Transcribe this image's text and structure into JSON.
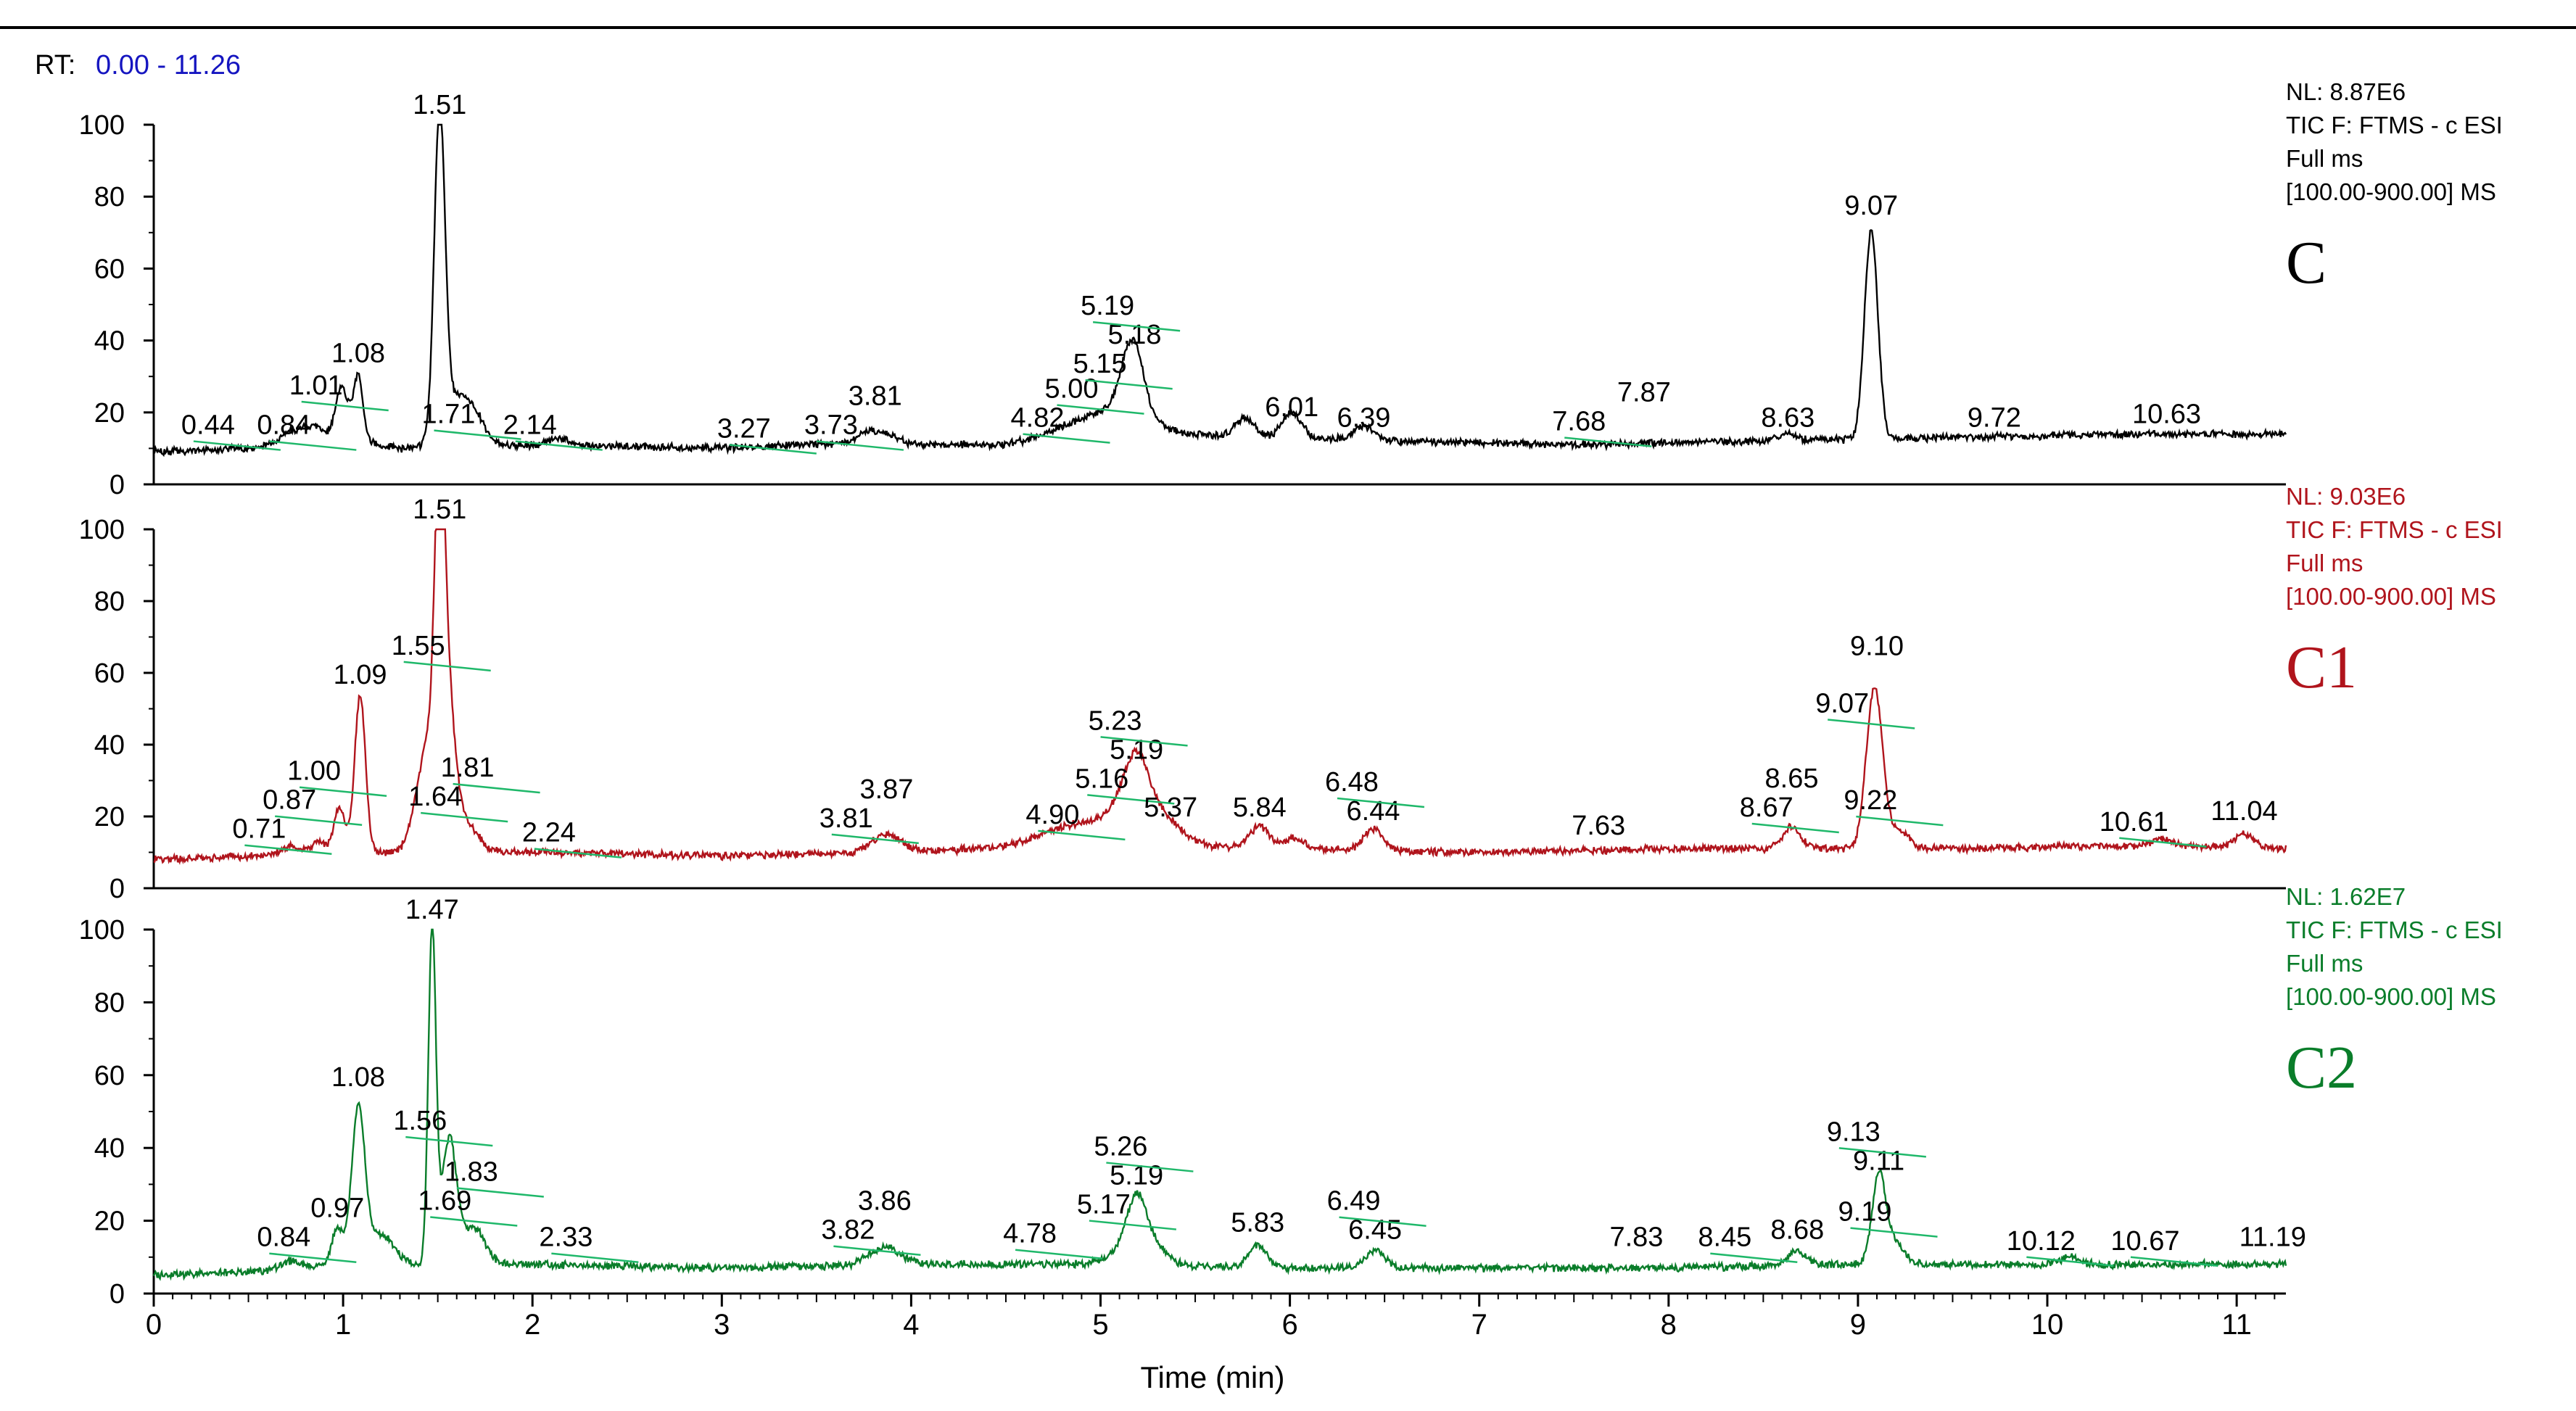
{
  "rt_label": "RT:",
  "rt_range": "0.00 - 11.26",
  "x_axis": {
    "label": "Time (min)",
    "min": 0,
    "max": 11.26,
    "ticks": [
      "0",
      "1",
      "2",
      "3",
      "4",
      "5",
      "6",
      "7",
      "8",
      "9",
      "10",
      "11"
    ]
  },
  "y_axis": {
    "min": 0,
    "max": 100,
    "ticks": [
      "0",
      "20",
      "40",
      "60",
      "80",
      "100"
    ]
  },
  "colors": {
    "C": "#000000",
    "C1": "#b0141c",
    "C2": "#0a7d2a",
    "annotation_leader": "#1fb86a",
    "rt_value": "#1515c0"
  },
  "chart_data": [
    {
      "type": "line",
      "sample": "C",
      "info": {
        "nl": "NL: 8.87E6",
        "tic": "TIC F: FTMS - c ESI",
        "scan": "Full ms",
        "range": "[100.00-900.00]  MS"
      },
      "xlim": [
        0,
        11.26
      ],
      "ylim": [
        0,
        100
      ],
      "baseline": [
        [
          0,
          9
        ],
        [
          0.5,
          10
        ],
        [
          1.0,
          13
        ],
        [
          1.3,
          10
        ],
        [
          2.0,
          11
        ],
        [
          3.0,
          10
        ],
        [
          3.5,
          11
        ],
        [
          4.0,
          11
        ],
        [
          4.5,
          11
        ],
        [
          5.3,
          14
        ],
        [
          6.0,
          13
        ],
        [
          6.6,
          12
        ],
        [
          7.5,
          11
        ],
        [
          8.5,
          12
        ],
        [
          9.5,
          13
        ],
        [
          10.5,
          14
        ],
        [
          11.26,
          14
        ]
      ],
      "peaks": [
        {
          "rt": 0.72,
          "h": 3,
          "w": 0.06
        },
        {
          "rt": 0.84,
          "h": 4,
          "w": 0.05
        },
        {
          "rt": 0.98,
          "h": 9,
          "w": 0.03
        },
        {
          "rt": 1.01,
          "h": 7,
          "w": 0.03
        },
        {
          "rt": 1.08,
          "h": 18,
          "w": 0.025
        },
        {
          "rt": 1.51,
          "h": 89,
          "w": 0.028
        },
        {
          "rt": 1.6,
          "h": 14,
          "w": 0.08
        },
        {
          "rt": 1.71,
          "h": 4,
          "w": 0.05
        },
        {
          "rt": 2.14,
          "h": 2,
          "w": 0.05
        },
        {
          "rt": 3.81,
          "h": 4,
          "w": 0.09
        },
        {
          "rt": 4.82,
          "h": 2,
          "w": 0.15
        },
        {
          "rt": 5.0,
          "h": 5,
          "w": 0.15
        },
        {
          "rt": 5.15,
          "h": 9,
          "w": 0.06
        },
        {
          "rt": 5.18,
          "h": 12,
          "w": 0.05
        },
        {
          "rt": 5.19,
          "h": 4,
          "w": 0.12
        },
        {
          "rt": 5.76,
          "h": 5,
          "w": 0.05
        },
        {
          "rt": 6.01,
          "h": 7,
          "w": 0.05
        },
        {
          "rt": 6.39,
          "h": 4,
          "w": 0.05
        },
        {
          "rt": 8.63,
          "h": 2,
          "w": 0.05
        },
        {
          "rt": 9.07,
          "h": 58,
          "w": 0.035
        }
      ],
      "labels": [
        {
          "text": "0.44",
          "rt": 0.44,
          "y": 14,
          "leader": true
        },
        {
          "text": "0.84",
          "rt": 0.84,
          "y": 14,
          "leader": true
        },
        {
          "text": "1.01",
          "rt": 1.01,
          "y": 25,
          "leader": true
        },
        {
          "text": "1.08",
          "rt": 1.08,
          "y": 34,
          "leader": false
        },
        {
          "text": "1.51",
          "rt": 1.51,
          "y": 103,
          "leader": false
        },
        {
          "text": "1.71",
          "rt": 1.71,
          "y": 17,
          "leader": true
        },
        {
          "text": "2.14",
          "rt": 2.14,
          "y": 14,
          "leader": true
        },
        {
          "text": "3.27",
          "rt": 3.27,
          "y": 13,
          "leader": true
        },
        {
          "text": "3.73",
          "rt": 3.73,
          "y": 14,
          "leader": true
        },
        {
          "text": "3.81",
          "rt": 3.81,
          "y": 16,
          "leader": false
        },
        {
          "text": "4.82",
          "rt": 4.82,
          "y": 16,
          "leader": true
        },
        {
          "text": "5.00",
          "rt": 5.0,
          "y": 21,
          "leader": true
        },
        {
          "text": "5.15",
          "rt": 5.15,
          "y": 31,
          "leader": true
        },
        {
          "text": "5.18",
          "rt": 5.18,
          "y": 32,
          "leader": false
        },
        {
          "text": "5.19",
          "rt": 5.19,
          "y": 25,
          "leader": true
        },
        {
          "text": "6.01",
          "rt": 6.01,
          "y": 19,
          "leader": false
        },
        {
          "text": "6.39",
          "rt": 6.39,
          "y": 16,
          "leader": false
        },
        {
          "text": "7.68",
          "rt": 7.68,
          "y": 15,
          "leader": true
        },
        {
          "text": "7.87",
          "rt": 7.87,
          "y": 16,
          "leader": false
        },
        {
          "text": "8.63",
          "rt": 8.63,
          "y": 16,
          "leader": false
        },
        {
          "text": "9.07",
          "rt": 9.07,
          "y": 75,
          "leader": false
        },
        {
          "text": "9.72",
          "rt": 9.72,
          "y": 16,
          "leader": false
        },
        {
          "text": "10.63",
          "rt": 10.63,
          "y": 17,
          "leader": false
        }
      ],
      "tag": "C"
    },
    {
      "type": "line",
      "sample": "C1",
      "info": {
        "nl": "NL: 9.03E6",
        "tic": "TIC F: FTMS - c ESI",
        "scan": "Full ms",
        "range": "[100.00-900.00]  MS"
      },
      "xlim": [
        0,
        11.26
      ],
      "ylim": [
        0,
        100
      ],
      "baseline": [
        [
          0,
          8
        ],
        [
          0.5,
          9
        ],
        [
          1.0,
          10
        ],
        [
          2.0,
          10
        ],
        [
          3.0,
          9
        ],
        [
          4.0,
          10
        ],
        [
          4.7,
          12
        ],
        [
          5.5,
          12
        ],
        [
          6.0,
          11
        ],
        [
          7.0,
          10
        ],
        [
          8.0,
          11
        ],
        [
          9.5,
          11
        ],
        [
          10.5,
          12
        ],
        [
          11.26,
          11
        ]
      ],
      "peaks": [
        {
          "rt": 0.72,
          "h": 2,
          "w": 0.05
        },
        {
          "rt": 0.87,
          "h": 3,
          "w": 0.04
        },
        {
          "rt": 0.97,
          "h": 8,
          "w": 0.025
        },
        {
          "rt": 1.0,
          "h": 6,
          "w": 0.03
        },
        {
          "rt": 1.09,
          "h": 44,
          "w": 0.028
        },
        {
          "rt": 1.45,
          "h": 30,
          "w": 0.06
        },
        {
          "rt": 1.51,
          "h": 80,
          "w": 0.025
        },
        {
          "rt": 1.55,
          "h": 38,
          "w": 0.04
        },
        {
          "rt": 1.64,
          "h": 8,
          "w": 0.07
        },
        {
          "rt": 3.87,
          "h": 5,
          "w": 0.08
        },
        {
          "rt": 4.9,
          "h": 6,
          "w": 0.18
        },
        {
          "rt": 5.16,
          "h": 8,
          "w": 0.1
        },
        {
          "rt": 5.19,
          "h": 11,
          "w": 0.06
        },
        {
          "rt": 5.23,
          "h": 6,
          "w": 0.1
        },
        {
          "rt": 5.37,
          "h": 4,
          "w": 0.08
        },
        {
          "rt": 5.84,
          "h": 6,
          "w": 0.05
        },
        {
          "rt": 6.02,
          "h": 3,
          "w": 0.05
        },
        {
          "rt": 6.44,
          "h": 6,
          "w": 0.05
        },
        {
          "rt": 8.65,
          "h": 6,
          "w": 0.05
        },
        {
          "rt": 9.07,
          "h": 20,
          "w": 0.04
        },
        {
          "rt": 9.1,
          "h": 28,
          "w": 0.04
        },
        {
          "rt": 9.22,
          "h": 5,
          "w": 0.05
        },
        {
          "rt": 10.61,
          "h": 2,
          "w": 0.05
        },
        {
          "rt": 11.04,
          "h": 4,
          "w": 0.05
        }
      ],
      "labels": [
        {
          "text": "0.71",
          "rt": 0.71,
          "y": 14,
          "leader": true
        },
        {
          "text": "0.87",
          "rt": 0.87,
          "y": 15,
          "leader": true
        },
        {
          "text": "1.00",
          "rt": 1.0,
          "y": 26,
          "leader": true
        },
        {
          "text": "1.09",
          "rt": 1.09,
          "y": 57,
          "leader": false
        },
        {
          "text": "1.51",
          "rt": 1.51,
          "y": 103,
          "leader": false
        },
        {
          "text": "1.55",
          "rt": 1.55,
          "y": 57,
          "leader": true
        },
        {
          "text": "1.64",
          "rt": 1.64,
          "y": 23,
          "leader": true
        },
        {
          "text": "1.81",
          "rt": 1.81,
          "y": 18,
          "leader": true
        },
        {
          "text": "2.24",
          "rt": 2.24,
          "y": 13,
          "leader": true
        },
        {
          "text": "3.81",
          "rt": 3.81,
          "y": 17,
          "leader": true
        },
        {
          "text": "3.87",
          "rt": 3.87,
          "y": 17,
          "leader": false
        },
        {
          "text": "4.90",
          "rt": 4.9,
          "y": 18,
          "leader": true
        },
        {
          "text": "5.16",
          "rt": 5.16,
          "y": 28,
          "leader": true
        },
        {
          "text": "5.19",
          "rt": 5.19,
          "y": 32,
          "leader": false
        },
        {
          "text": "5.23",
          "rt": 5.23,
          "y": 28,
          "leader": true
        },
        {
          "text": "5.37",
          "rt": 5.37,
          "y": 20,
          "leader": false
        },
        {
          "text": "5.84",
          "rt": 5.84,
          "y": 20,
          "leader": false
        },
        {
          "text": "6.44",
          "rt": 6.44,
          "y": 19,
          "leader": false
        },
        {
          "text": "6.48",
          "rt": 6.48,
          "y": 17,
          "leader": true
        },
        {
          "text": "7.63",
          "rt": 7.63,
          "y": 15,
          "leader": false
        },
        {
          "text": "8.67",
          "rt": 8.67,
          "y": 20,
          "leader": true
        },
        {
          "text": "8.65",
          "rt": 8.65,
          "y": 20,
          "leader": false
        },
        {
          "text": "9.07",
          "rt": 9.07,
          "y": 49,
          "leader": true
        },
        {
          "text": "9.10",
          "rt": 9.1,
          "y": 65,
          "leader": false
        },
        {
          "text": "9.22",
          "rt": 9.22,
          "y": 22,
          "leader": true
        },
        {
          "text": "10.61",
          "rt": 10.61,
          "y": 16,
          "leader": true
        },
        {
          "text": "11.04",
          "rt": 11.04,
          "y": 19,
          "leader": false
        }
      ],
      "tag": "C1"
    },
    {
      "type": "line",
      "sample": "C2",
      "info": {
        "nl": "NL: 1.62E7",
        "tic": "TIC F: FTMS - c ESI",
        "scan": "Full ms",
        "range": "[100.00-900.00]  MS"
      },
      "xlim": [
        0,
        11.26
      ],
      "ylim": [
        0,
        100
      ],
      "baseline": [
        [
          0,
          5
        ],
        [
          0.5,
          6
        ],
        [
          1.0,
          8
        ],
        [
          2.0,
          8
        ],
        [
          3.0,
          7
        ],
        [
          4.0,
          8
        ],
        [
          5.0,
          8
        ],
        [
          6.0,
          7
        ],
        [
          7.0,
          7
        ],
        [
          8.0,
          7
        ],
        [
          9.0,
          8
        ],
        [
          10.0,
          8
        ],
        [
          11.26,
          8
        ]
      ],
      "peaks": [
        {
          "rt": 0.72,
          "h": 2,
          "w": 0.05
        },
        {
          "rt": 0.97,
          "h": 10,
          "w": 0.03
        },
        {
          "rt": 1.08,
          "h": 42,
          "w": 0.035
        },
        {
          "rt": 1.2,
          "h": 8,
          "w": 0.07
        },
        {
          "rt": 1.47,
          "h": 92,
          "w": 0.02
        },
        {
          "rt": 1.56,
          "h": 34,
          "w": 0.04
        },
        {
          "rt": 1.69,
          "h": 10,
          "w": 0.06
        },
        {
          "rt": 3.86,
          "h": 5,
          "w": 0.08
        },
        {
          "rt": 5.17,
          "h": 5,
          "w": 0.1
        },
        {
          "rt": 5.19,
          "h": 12,
          "w": 0.05
        },
        {
          "rt": 5.26,
          "h": 4,
          "w": 0.08
        },
        {
          "rt": 5.83,
          "h": 6,
          "w": 0.05
        },
        {
          "rt": 6.45,
          "h": 5,
          "w": 0.05
        },
        {
          "rt": 8.68,
          "h": 4,
          "w": 0.05
        },
        {
          "rt": 9.11,
          "h": 24,
          "w": 0.035
        },
        {
          "rt": 9.19,
          "h": 6,
          "w": 0.05
        },
        {
          "rt": 10.12,
          "h": 2,
          "w": 0.05
        }
      ],
      "labels": [
        {
          "text": "0.84",
          "rt": 0.84,
          "y": 13,
          "leader": true
        },
        {
          "text": "0.97",
          "rt": 0.97,
          "y": 21,
          "leader": false
        },
        {
          "text": "1.08",
          "rt": 1.08,
          "y": 57,
          "leader": false
        },
        {
          "text": "1.47",
          "rt": 1.47,
          "y": 103,
          "leader": false
        },
        {
          "text": "1.56",
          "rt": 1.56,
          "y": 45,
          "leader": true
        },
        {
          "text": "1.69",
          "rt": 1.69,
          "y": 23,
          "leader": true
        },
        {
          "text": "1.83",
          "rt": 1.83,
          "y": 18,
          "leader": true
        },
        {
          "text": "2.33",
          "rt": 2.33,
          "y": 13,
          "leader": true
        },
        {
          "text": "3.82",
          "rt": 3.82,
          "y": 15,
          "leader": true
        },
        {
          "text": "3.86",
          "rt": 3.86,
          "y": 15,
          "leader": false
        },
        {
          "text": "4.78",
          "rt": 4.78,
          "y": 14,
          "leader": true
        },
        {
          "text": "5.17",
          "rt": 5.17,
          "y": 22,
          "leader": true
        },
        {
          "text": "5.19",
          "rt": 5.19,
          "y": 25,
          "leader": false
        },
        {
          "text": "5.26",
          "rt": 5.26,
          "y": 20,
          "leader": true
        },
        {
          "text": "5.83",
          "rt": 5.83,
          "y": 17,
          "leader": false
        },
        {
          "text": "6.45",
          "rt": 6.45,
          "y": 15,
          "leader": false
        },
        {
          "text": "6.49",
          "rt": 6.49,
          "y": 14,
          "leader": true
        },
        {
          "text": "7.83",
          "rt": 7.83,
          "y": 13,
          "leader": false
        },
        {
          "text": "8.45",
          "rt": 8.45,
          "y": 13,
          "leader": true
        },
        {
          "text": "8.68",
          "rt": 8.68,
          "y": 15,
          "leader": false
        },
        {
          "text": "9.11",
          "rt": 9.11,
          "y": 34,
          "leader": false
        },
        {
          "text": "9.13",
          "rt": 9.13,
          "y": 34,
          "leader": true
        },
        {
          "text": "9.19",
          "rt": 9.19,
          "y": 20,
          "leader": true
        },
        {
          "text": "10.12",
          "rt": 10.12,
          "y": 12,
          "leader": true
        },
        {
          "text": "10.67",
          "rt": 10.67,
          "y": 12,
          "leader": true
        },
        {
          "text": "11.19",
          "rt": 11.19,
          "y": 13,
          "leader": false
        }
      ],
      "tag": "C2"
    }
  ]
}
